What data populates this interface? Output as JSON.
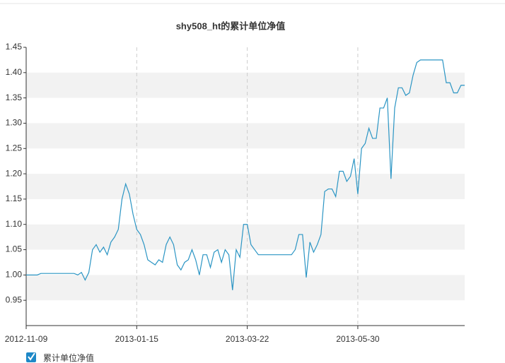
{
  "chart_data": {
    "type": "line",
    "title": "shy508_ht的累计单位净值",
    "categories": [
      "2012-11-09",
      null,
      null,
      null,
      null,
      null,
      null,
      null,
      null,
      null,
      null,
      null,
      null,
      null,
      null,
      null,
      null,
      null,
      null,
      null,
      null,
      null,
      null,
      null,
      null,
      null,
      null,
      null,
      null,
      null,
      "2013-01-15",
      null,
      null,
      null,
      null,
      null,
      null,
      null,
      null,
      null,
      null,
      null,
      null,
      null,
      null,
      null,
      null,
      null,
      null,
      null,
      null,
      null,
      null,
      null,
      null,
      null,
      null,
      null,
      null,
      null,
      "2013-03-22",
      null,
      null,
      null,
      null,
      null,
      null,
      null,
      null,
      null,
      null,
      null,
      null,
      null,
      null,
      null,
      null,
      null,
      null,
      null,
      null,
      null,
      null,
      null,
      null,
      null,
      null,
      null,
      null,
      null,
      "2013-05-30",
      null,
      null,
      null,
      null,
      null,
      null,
      null,
      null,
      null,
      null,
      null,
      null,
      null,
      null,
      null,
      null,
      null,
      null,
      null,
      null,
      null,
      null,
      null,
      null,
      null,
      null,
      null,
      null,
      null
    ],
    "series": [
      {
        "name": "累计单位净值",
        "color": "#2b95c4",
        "values": [
          1.0,
          1.0,
          1.0,
          1.0,
          1.003,
          1.003,
          1.003,
          1.003,
          1.003,
          1.003,
          1.003,
          1.003,
          1.003,
          1.003,
          1.0,
          1.005,
          0.99,
          1.005,
          1.05,
          1.06,
          1.045,
          1.055,
          1.04,
          1.065,
          1.075,
          1.09,
          1.15,
          1.18,
          1.16,
          1.12,
          1.09,
          1.08,
          1.06,
          1.03,
          1.025,
          1.02,
          1.03,
          1.025,
          1.06,
          1.075,
          1.06,
          1.02,
          1.01,
          1.025,
          1.03,
          1.05,
          1.03,
          1.0,
          1.04,
          1.04,
          1.015,
          1.045,
          1.05,
          1.025,
          1.05,
          1.04,
          0.97,
          1.05,
          1.035,
          1.1,
          1.1,
          1.06,
          1.05,
          1.04,
          1.04,
          1.04,
          1.04,
          1.04,
          1.04,
          1.04,
          1.04,
          1.04,
          1.04,
          1.05,
          1.08,
          1.08,
          0.995,
          1.065,
          1.045,
          1.06,
          1.08,
          1.165,
          1.17,
          1.17,
          1.155,
          1.205,
          1.205,
          1.185,
          1.195,
          1.23,
          1.16,
          1.25,
          1.26,
          1.29,
          1.27,
          1.27,
          1.33,
          1.33,
          1.35,
          1.19,
          1.33,
          1.37,
          1.37,
          1.355,
          1.36,
          1.395,
          1.42,
          1.425,
          1.425,
          1.425,
          1.425,
          1.425,
          1.425,
          1.425,
          1.38,
          1.38,
          1.36,
          1.36,
          1.375,
          1.375
        ]
      }
    ],
    "ylim": [
      0.9,
      1.45
    ],
    "yticks": [
      0.95,
      {
        "value": 1.0,
        "label": "1.00"
      },
      1.05,
      {
        "value": 1.1,
        "label": "1.10"
      },
      1.15,
      {
        "value": 1.2,
        "label": "1.20"
      },
      1.25,
      {
        "value": 1.3,
        "label": "1.30"
      },
      1.35,
      {
        "value": 1.4,
        "label": "1.40"
      },
      1.45
    ],
    "grid": true
  }
}
